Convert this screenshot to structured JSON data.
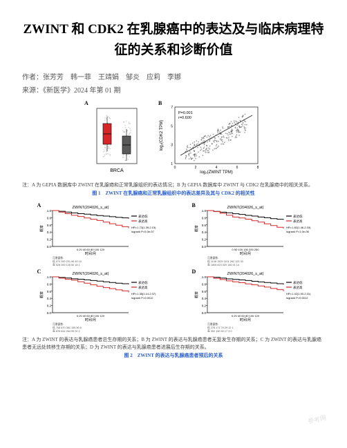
{
  "title": "ZWINT 和 CDK2 在乳腺癌中的表达及与临床病理特征的关系和诊断价值",
  "authors_label": "作者：",
  "authors": "张芳芳　韩一菲　王靖娟　邹炎　应莉　李娜",
  "source_label": "来源：",
  "source": "《新医学》2024 年第 01 期",
  "fig1": {
    "panelA": {
      "label": "A",
      "xaxis_label": "BRCA",
      "box": {
        "tumor_color": "#d62728",
        "normal_color": "#5a5a5a",
        "bg_color": "#ffffff",
        "border_color": "#333333",
        "jitter_color": "#8a8a8a"
      }
    },
    "panelB": {
      "label": "B",
      "xlabel": "log₂(ZWINT TPM)",
      "ylabel": "log₂(CDK2 TPM)",
      "stat1": "P=0.001",
      "stat2": "r=0.600",
      "xlim": [
        0,
        8
      ],
      "ylim": [
        1,
        7
      ],
      "point_color": "#4f4f4f",
      "line_color": "#2c2c2c",
      "border_color": "#333333"
    },
    "caption": "注：A 为 GEPIA 数据库中 ZWINT 在乳腺癌和正常乳腺组织的表达情况；B 为 GEPIA 数据库中 ZWINT 与 CDK2 在乳腺癌中的相关关系。",
    "title": "图 1　ZWINT 在乳腺癌和正常乳腺组织中的表达差异及其与 CDK2 的相关性"
  },
  "fig2": {
    "panels": [
      {
        "label": "A",
        "title": "ZWINT(204026_s_at)",
        "xlabel": "时间/月",
        "ylabel": "概率",
        "legend1": "表达低",
        "legend2": "表达高",
        "stat": "HR=1.73(1.39-2.15)",
        "pval": "logrank P=5.0e-07",
        "nums": "月暴露数:\n低 574 390 201 96 49 19\n高 528 283 126 50 18 1",
        "xticks": "0  20  40  60  80 100 120",
        "line_low": "#000000",
        "line_high": "#d62728"
      },
      {
        "label": "B",
        "title": "ZWINT(204026_s_at)",
        "xlabel": "时间/月",
        "ylabel": "概率",
        "legend1": "表达低",
        "legend2": "表达高",
        "stat": "HR=1.82(1.46-2.33)",
        "pval": "logrank P=1.0e-06",
        "nums": "月暴露数:\n低 1108 1529 1101 262 125 33\n高 1805 823 320 146 51 14",
        "xticks": "0  50 100 150 200 250",
        "line_low": "#000000",
        "line_high": "#d62728"
      },
      {
        "label": "C",
        "title": "ZWINT(204026_s_at)",
        "xlabel": "时间/月",
        "ylabel": "概率",
        "legend1": "表达低",
        "legend2": "表达高",
        "stat": "HR=1.38(1.14-2.37)",
        "pval": "logrank P=0.0012",
        "nums": "月暴露数:\n低 708 670 381 155 50 9\n高 878 644 264 95 20 2",
        "xticks": "0  20  40  60  80 100 120",
        "line_low": "#000000",
        "line_high": "#d62728"
      },
      {
        "label": "D",
        "title": "ZWINT(204026_s_at)",
        "xlabel": "时间/月",
        "ylabel": "概率",
        "legend1": "表达低",
        "legend2": "表达高",
        "stat": "HR=1.42(1.00-2.31)",
        "pval": "logrank P=0.0012",
        "nums": "月暴露数:\n低 276 171 70 29 12 1\n高 352 150 50 17 3 0",
        "xticks": "0  20  40  60  80 100 120",
        "line_low": "#000000",
        "line_high": "#d62728"
      }
    ],
    "caption": "注：A 为 ZWINT 的表达与乳腺癌患者总生存期的关系；B 为 ZWINT 的表达与乳腺癌患者无复发生存期的关系；C 为 ZWINT 的表达与乳腺癌患者无远处转移生存期的关系；D 为 ZWINT 的表达与乳腺癌患者进展后生存期的关系。",
    "title": "图 2　ZWINT 的表达与乳腺癌患者预后的关系"
  },
  "colors": {
    "title_blue": "#2b5fd0",
    "text_gray": "#555555"
  }
}
